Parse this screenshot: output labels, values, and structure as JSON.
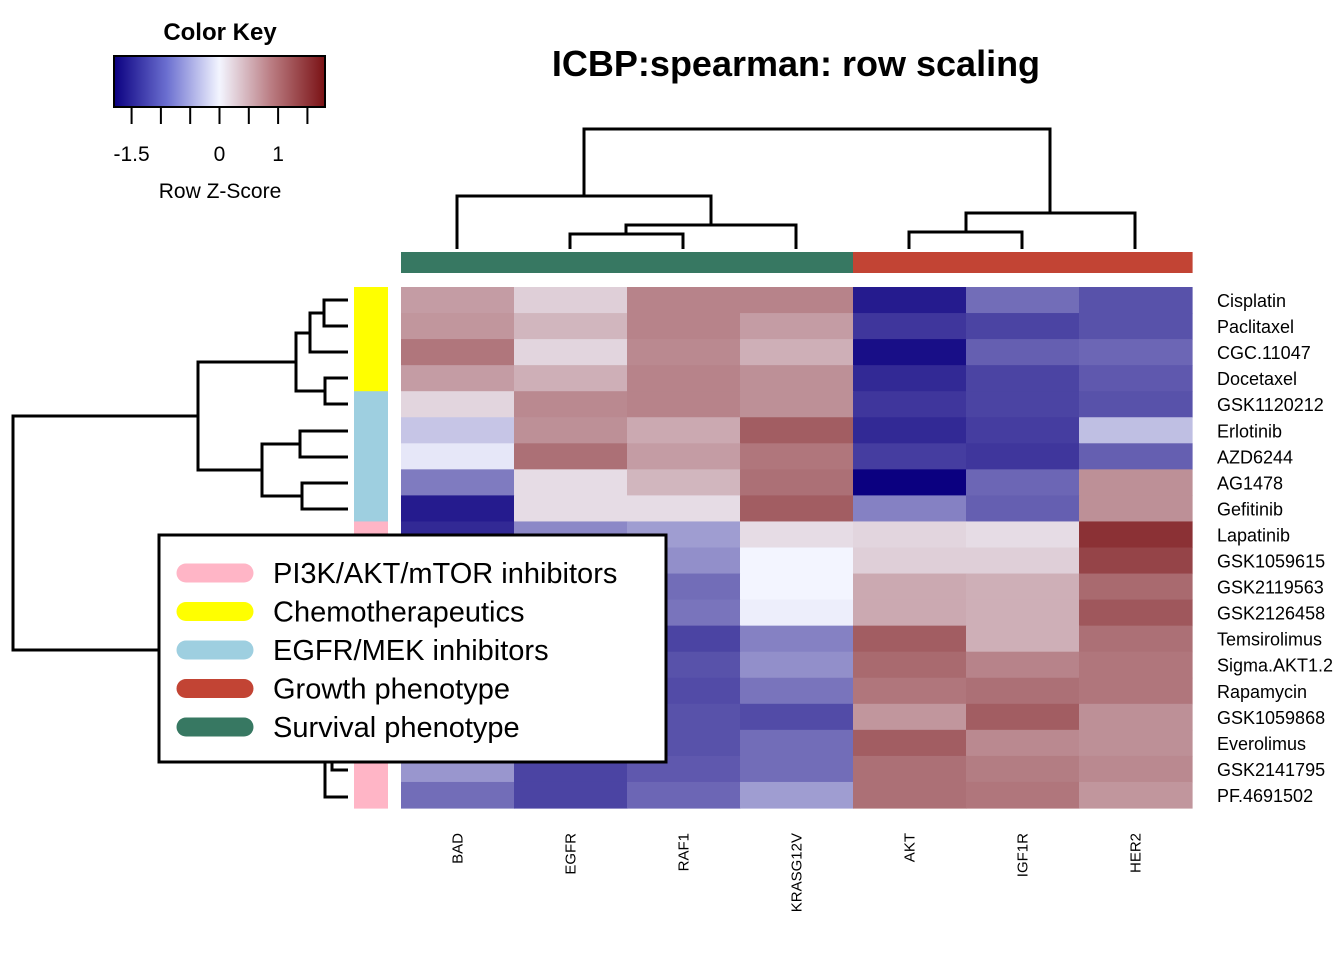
{
  "chart_data": {
    "type": "heatmap",
    "title": "ICBP:spearman: row scaling",
    "color_key": {
      "title": "Color Key",
      "xlabel": "Row Z-Score",
      "tick_labels": [
        "-1.5",
        "0",
        "1"
      ],
      "tick_values": [
        -1.5,
        0,
        1
      ],
      "range": [
        -1.8,
        1.8
      ],
      "colors": [
        "#0b0080",
        "#f3f5ff",
        "#7a1114"
      ]
    },
    "columns": [
      "BAD",
      "EGFR",
      "RAF1",
      "KRASG12V",
      "AKT",
      "IGF1R",
      "HER2"
    ],
    "column_groups": [
      "Survival phenotype",
      "Survival phenotype",
      "Survival phenotype",
      "Survival phenotype",
      "Growth phenotype",
      "Growth phenotype",
      "Growth phenotype"
    ],
    "rows": [
      "Cisplatin",
      "Paclitaxel",
      "CGC.11047",
      "Docetaxel",
      "GSK1120212",
      "Erlotinib",
      "AZD6244",
      "AG1478",
      "Gefitinib",
      "Lapatinib",
      "GSK1059615",
      "GSK2119563",
      "GSK2126458",
      "Temsirolimus",
      "Sigma.AKT1.2",
      "Rapamycin",
      "GSK1059868",
      "Everolimus",
      "GSK2141795",
      "PF.4691502"
    ],
    "row_groups": [
      "Chemotherapeutics",
      "Chemotherapeutics",
      "Chemotherapeutics",
      "Chemotherapeutics",
      "EGFR/MEK inhibitors",
      "EGFR/MEK inhibitors",
      "EGFR/MEK inhibitors",
      "EGFR/MEK inhibitors",
      "EGFR/MEK inhibitors",
      "PI3K/AKT/mTOR inhibitors",
      "PI3K/AKT/mTOR inhibitors",
      "PI3K/AKT/mTOR inhibitors",
      "PI3K/AKT/mTOR inhibitors",
      "PI3K/AKT/mTOR inhibitors",
      "PI3K/AKT/mTOR inhibitors",
      "PI3K/AKT/mTOR inhibitors",
      "PI3K/AKT/mTOR inhibitors",
      "PI3K/AKT/mTOR inhibitors",
      "PI3K/AKT/mTOR inhibitors",
      "PI3K/AKT/mTOR inhibitors"
    ],
    "values": [
      [
        0.7,
        0.3,
        0.9,
        0.9,
        -1.6,
        -1.0,
        -1.2
      ],
      [
        0.75,
        0.5,
        0.9,
        0.7,
        -1.4,
        -1.3,
        -1.2
      ],
      [
        1.0,
        0.25,
        0.85,
        0.55,
        -1.7,
        -1.1,
        -1.05
      ],
      [
        0.7,
        0.55,
        0.9,
        0.8,
        -1.5,
        -1.3,
        -1.15
      ],
      [
        0.25,
        0.85,
        0.9,
        0.8,
        -1.4,
        -1.3,
        -1.2
      ],
      [
        -0.35,
        0.8,
        0.6,
        1.2,
        -1.5,
        -1.35,
        -0.4
      ],
      [
        -0.1,
        1.05,
        0.7,
        1.0,
        -1.35,
        -1.4,
        -1.1
      ],
      [
        -0.9,
        0.2,
        0.5,
        1.05,
        -1.8,
        -1.05,
        0.8
      ],
      [
        -1.6,
        0.2,
        0.2,
        1.2,
        -0.85,
        -1.1,
        0.8
      ],
      [
        -1.5,
        -0.8,
        -0.65,
        0.2,
        0.25,
        0.2,
        1.55
      ],
      [
        -1.5,
        -0.9,
        -0.75,
        0.0,
        0.3,
        0.3,
        1.4
      ],
      [
        -1.4,
        -1.0,
        -1.0,
        0.0,
        0.6,
        0.55,
        1.1
      ],
      [
        -1.4,
        -1.05,
        -0.95,
        -0.05,
        0.6,
        0.55,
        1.25
      ],
      [
        -1.4,
        -1.1,
        -1.3,
        -0.85,
        1.2,
        0.55,
        1.05
      ],
      [
        -1.4,
        -1.1,
        -1.2,
        -0.75,
        1.1,
        0.9,
        1.0
      ],
      [
        -1.4,
        -1.1,
        -1.25,
        -0.95,
        1.0,
        1.05,
        1.0
      ],
      [
        -1.4,
        -1.2,
        -1.2,
        -1.25,
        0.75,
        1.2,
        0.8
      ],
      [
        -1.4,
        -1.1,
        -1.2,
        -1.0,
        1.2,
        0.85,
        0.8
      ],
      [
        -0.7,
        -1.3,
        -1.15,
        -1.0,
        1.05,
        0.95,
        0.85
      ],
      [
        -1.0,
        -1.3,
        -1.05,
        -0.65,
        1.05,
        1.0,
        0.75
      ]
    ],
    "legend": {
      "placement": "center-left",
      "items": [
        {
          "label": "PI3K/AKT/mTOR inhibitors",
          "color": "#ffb5c6"
        },
        {
          "label": "Chemotherapeutics",
          "color": "#ffff00"
        },
        {
          "label": "EGFR/MEK inhibitors",
          "color": "#9ecfe0"
        },
        {
          "label": "Growth phenotype",
          "color": "#c24434"
        },
        {
          "label": "Survival phenotype",
          "color": "#377862"
        }
      ]
    }
  }
}
